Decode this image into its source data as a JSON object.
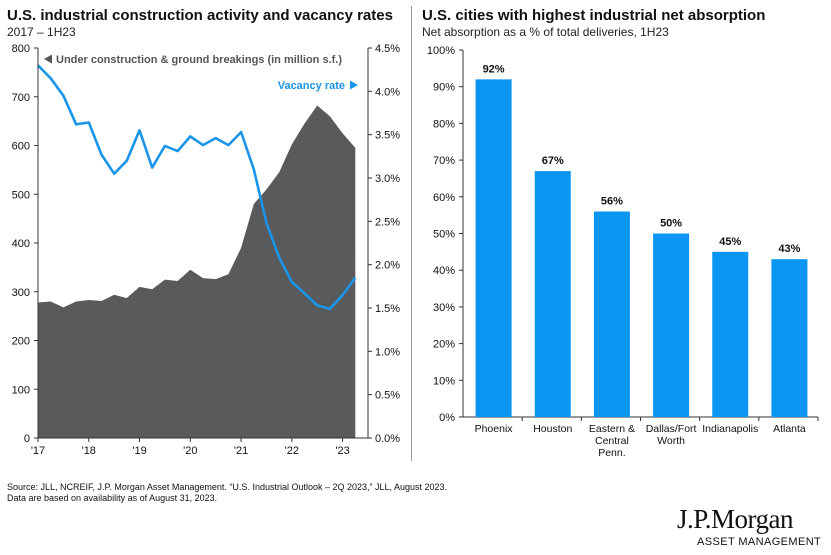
{
  "left_panel": {
    "title": "U.S. industrial construction activity and vacancy rates",
    "subtitle": "2017 – 1H23"
  },
  "right_panel": {
    "title": "U.S. cities with highest industrial net absorption",
    "subtitle": "Net absorption as a % of total deliveries, 1H23"
  },
  "footer": {
    "source_line1": "Source: JLL, NCREIF, J.P. Morgan Asset Management. “U.S. Industrial Outlook – 2Q 2023,” JLL, August 2023.",
    "source_line2": "Data are based on availability as of August 31, 2023."
  },
  "logo": {
    "main": "J.P.Morgan",
    "sub": "ASSET MANAGEMENT"
  },
  "chart_data": [
    {
      "type": "area",
      "x_tick_labels": [
        "'17",
        "'18",
        "'19",
        "'20",
        "'21",
        "'22",
        "'23"
      ],
      "x_range": [
        2017.0,
        2023.5
      ],
      "ylim_left": [
        0,
        800
      ],
      "yticks_left": [
        0,
        100,
        200,
        300,
        400,
        500,
        600,
        700,
        800
      ],
      "ylim_right": [
        0,
        4.5
      ],
      "yticks_right": [
        "0.0%",
        "0.5%",
        "1.0%",
        "1.5%",
        "2.0%",
        "2.5%",
        "3.0%",
        "3.5%",
        "4.0%",
        "4.5%"
      ],
      "series": [
        {
          "name": "Under construction & ground breakings (in million s.f.)",
          "axis": "left",
          "color": "#595a5c",
          "x": [
            2017.0,
            2017.25,
            2017.5,
            2017.75,
            2018.0,
            2018.25,
            2018.5,
            2018.75,
            2019.0,
            2019.25,
            2019.5,
            2019.75,
            2020.0,
            2020.25,
            2020.5,
            2020.75,
            2021.0,
            2021.25,
            2021.5,
            2021.75,
            2022.0,
            2022.25,
            2022.5,
            2022.75,
            2023.0,
            2023.25
          ],
          "values": [
            278,
            280,
            268,
            280,
            283,
            281,
            294,
            287,
            310,
            305,
            325,
            322,
            345,
            328,
            326,
            336,
            390,
            480,
            510,
            545,
            602,
            645,
            682,
            660,
            625,
            595
          ]
        },
        {
          "name": "Vacancy rate",
          "axis": "right",
          "color": "#1b95e8",
          "x": [
            2017.0,
            2017.25,
            2017.5,
            2017.75,
            2018.0,
            2018.25,
            2018.5,
            2018.75,
            2019.0,
            2019.25,
            2019.5,
            2019.75,
            2020.0,
            2020.25,
            2020.5,
            2020.75,
            2021.0,
            2021.25,
            2021.5,
            2021.75,
            2022.0,
            2022.25,
            2022.5,
            2022.75,
            2023.0,
            2023.25
          ],
          "values": [
            4.3,
            4.15,
            3.95,
            3.62,
            3.64,
            3.27,
            3.05,
            3.2,
            3.55,
            3.12,
            3.37,
            3.31,
            3.48,
            3.38,
            3.46,
            3.38,
            3.53,
            3.1,
            2.48,
            2.08,
            1.8,
            1.67,
            1.53,
            1.49,
            1.65,
            1.85
          ]
        }
      ]
    },
    {
      "type": "bar",
      "categories": [
        "Phoenix",
        "Houston",
        "Eastern & Central Penn.",
        "Dallas/Fort Worth",
        "Indianapolis",
        "Atlanta"
      ],
      "values": [
        92,
        67,
        56,
        50,
        45,
        43
      ],
      "data_labels": [
        "92%",
        "67%",
        "56%",
        "50%",
        "45%",
        "43%"
      ],
      "ylim": [
        0,
        100
      ],
      "yticks": [
        "0%",
        "10%",
        "20%",
        "30%",
        "40%",
        "50%",
        "60%",
        "70%",
        "80%",
        "90%",
        "100%"
      ],
      "color": "#0a95f0"
    }
  ]
}
